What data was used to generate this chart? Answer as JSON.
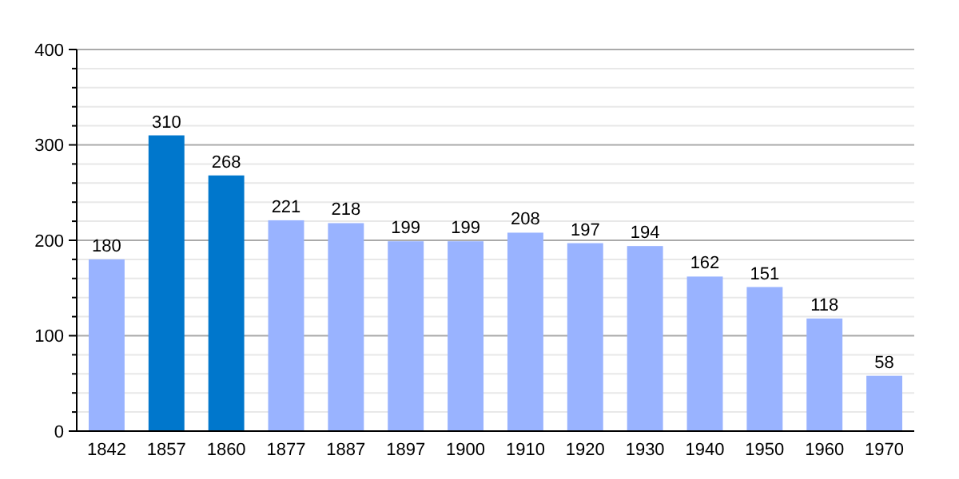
{
  "chart_data": {
    "type": "bar",
    "categories": [
      "1842",
      "1857",
      "1860",
      "1877",
      "1887",
      "1897",
      "1900",
      "1910",
      "1920",
      "1930",
      "1940",
      "1950",
      "1960",
      "1970"
    ],
    "values": [
      180,
      310,
      268,
      221,
      218,
      199,
      199,
      208,
      197,
      194,
      162,
      151,
      118,
      58
    ],
    "colors": [
      "#99b3ff",
      "#0077cc",
      "#0077cc",
      "#99b3ff",
      "#99b3ff",
      "#99b3ff",
      "#99b3ff",
      "#99b3ff",
      "#99b3ff",
      "#99b3ff",
      "#99b3ff",
      "#99b3ff",
      "#99b3ff",
      "#99b3ff"
    ],
    "ylim": [
      0,
      400
    ],
    "yticks": [
      0,
      {
        "value": 20,
        "label": null
      },
      {
        "value": 40,
        "label": null
      },
      {
        "value": 60,
        "label": null
      },
      {
        "value": 80,
        "label": null
      },
      100,
      {
        "value": 120,
        "label": null
      },
      {
        "value": 140,
        "label": null
      },
      {
        "value": 160,
        "label": null
      },
      {
        "value": 180,
        "label": null
      },
      200,
      {
        "value": 220,
        "label": null
      },
      {
        "value": 240,
        "label": null
      },
      {
        "value": 260,
        "label": null
      },
      {
        "value": 280,
        "label": null
      },
      300,
      {
        "value": 320,
        "label": null
      },
      {
        "value": 340,
        "label": null
      },
      {
        "value": 360,
        "label": null
      },
      {
        "value": 380,
        "label": null
      },
      400
    ],
    "grid": true,
    "data_labels": true
  }
}
